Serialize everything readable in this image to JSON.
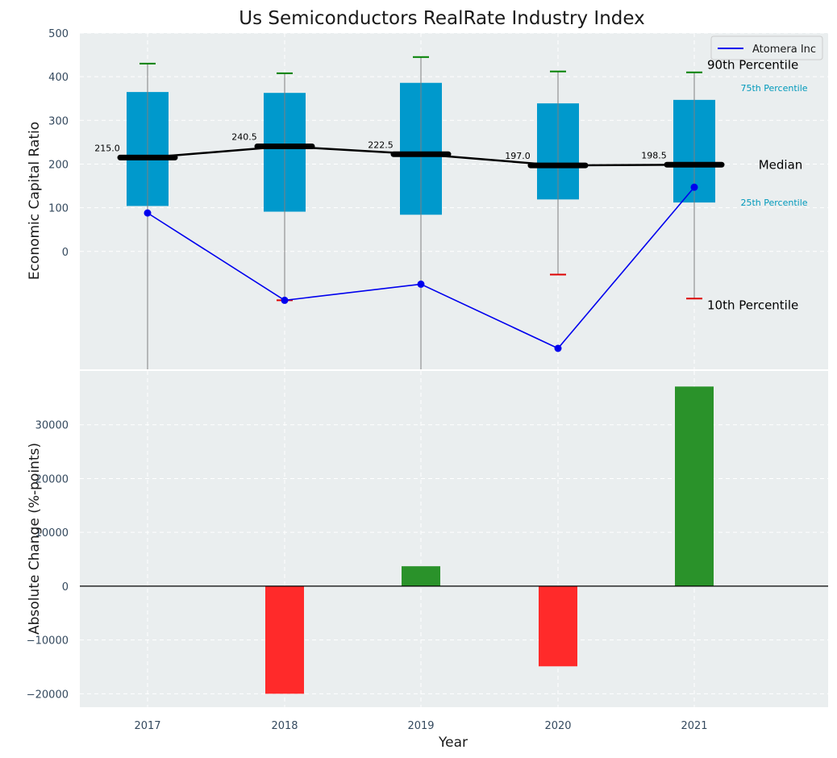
{
  "chart_data": [
    {
      "type": "box",
      "title": "Us Semiconductors RealRate Industry Index",
      "ylabel": "Economic Capital Ratio",
      "xlabel": "",
      "categories": [
        "2017",
        "2018",
        "2019",
        "2020",
        "2021"
      ],
      "ylim": [
        -270,
        500
      ],
      "yticks": [
        0,
        100,
        200,
        300,
        400,
        500
      ],
      "grid": true,
      "p90": [
        430,
        408,
        445,
        412,
        410
      ],
      "p75": [
        365,
        363,
        386,
        339,
        347
      ],
      "median": [
        215.0,
        240.5,
        222.5,
        197.0,
        198.5
      ],
      "median_labels": [
        "215.0",
        "240.5",
        "222.5",
        "197.0",
        "198.5"
      ],
      "p25": [
        104,
        91,
        84,
        119,
        112
      ],
      "p10": [
        -270,
        -112,
        -270,
        -53,
        -108
      ],
      "whisker_high": [
        430,
        408,
        445,
        412,
        410
      ],
      "whisker_low": [
        -270,
        -112,
        -270,
        -53,
        -108
      ],
      "series": [
        {
          "name": "Atomera Inc",
          "values": [
            88,
            -112,
            -75,
            -222,
            147
          ],
          "color": "#0000ee"
        }
      ],
      "annotations": {
        "p90": "90th Percentile",
        "p75": "75th Percentile",
        "median": "Median",
        "p25": "25th Percentile",
        "p10": "10th Percentile"
      },
      "legend": {
        "placement": "top-right"
      },
      "colors": {
        "box": "#0099cc",
        "median": "#000000",
        "p90_cap": "#008000",
        "p10_cap": "#dd0000",
        "whisker": "#808080",
        "annot_light": "#0099bb"
      }
    },
    {
      "type": "bar",
      "ylabel": "Absolute Change (%-points)",
      "xlabel": "Year",
      "categories": [
        "2017",
        "2018",
        "2019",
        "2020",
        "2021"
      ],
      "values": [
        0,
        -20000,
        3700,
        -14900,
        37100
      ],
      "ylim": [
        -22500,
        40000
      ],
      "yticks": [
        -20000,
        -10000,
        0,
        10000,
        20000,
        30000
      ],
      "ytick_labels": [
        "−20000",
        "−10000",
        "0",
        "10000",
        "20000",
        "30000"
      ],
      "grid": true,
      "colors": {
        "positive": "#2a922a",
        "negative": "#ff2a2a",
        "zero_line": "#000000"
      }
    }
  ],
  "background": "#eaeeef"
}
